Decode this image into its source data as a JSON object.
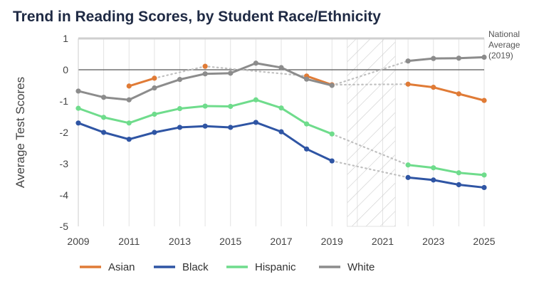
{
  "chart_data": {
    "type": "line",
    "title": "Trend in Reading Scores, by Student Race/Ethnicity",
    "ylabel": "Average Test Scores",
    "xlabel": "",
    "xlim": [
      2009,
      2025
    ],
    "ylim": [
      -5,
      1
    ],
    "x_ticks": [
      "2009",
      "2011",
      "2013",
      "2015",
      "2017",
      "2019",
      "2021",
      "2023",
      "2025"
    ],
    "y_ticks": [
      "1",
      "0",
      "-1",
      "-2",
      "-3",
      "-4",
      "-5"
    ],
    "grid": "vertical",
    "shaded_range": [
      2019.6,
      2021.5
    ],
    "reference_line": {
      "name": "National Average (2019)",
      "label_lines": [
        "National",
        "Average",
        "(2019)"
      ],
      "value": 1
    },
    "zero_line": 0,
    "legend_position": "bottom",
    "colors": {
      "Asian": "#e07b36",
      "Black": "#2f55a4",
      "Hispanic": "#6fdc8c",
      "White": "#8c8c8c",
      "dotted": "#c0c0c0",
      "reference": "#cfcfcf",
      "zero": "#555555",
      "grid": "#e3e3e3",
      "hatch": "#cccccc"
    },
    "series": [
      {
        "name": "Asian",
        "segments": [
          [
            [
              2011,
              -0.52
            ],
            [
              2012,
              -0.27
            ]
          ],
          [
            [
              2014,
              0.11
            ]
          ],
          [
            [
              2018,
              -0.2
            ],
            [
              2019,
              -0.48
            ]
          ],
          [
            [
              2022,
              -0.46
            ],
            [
              2023,
              -0.56
            ],
            [
              2024,
              -0.77
            ],
            [
              2025,
              -0.98
            ]
          ]
        ],
        "dotted": [
          [
            [
              2012,
              -0.27
            ],
            [
              2014,
              0.11
            ],
            [
              2018,
              -0.2
            ]
          ],
          [
            [
              2019,
              -0.48
            ],
            [
              2022,
              -0.46
            ]
          ]
        ]
      },
      {
        "name": "Black",
        "segments": [
          [
            [
              2009,
              -1.7
            ],
            [
              2010,
              -2.0
            ],
            [
              2011,
              -2.22
            ],
            [
              2012,
              -2.0
            ],
            [
              2013,
              -1.84
            ],
            [
              2014,
              -1.8
            ],
            [
              2015,
              -1.84
            ],
            [
              2016,
              -1.68
            ],
            [
              2017,
              -1.98
            ],
            [
              2018,
              -2.53
            ],
            [
              2019,
              -2.91
            ]
          ],
          [
            [
              2022,
              -3.44
            ],
            [
              2023,
              -3.52
            ],
            [
              2024,
              -3.67
            ],
            [
              2025,
              -3.76
            ]
          ]
        ],
        "dotted": [
          [
            [
              2019,
              -2.91
            ],
            [
              2022,
              -3.44
            ]
          ]
        ]
      },
      {
        "name": "Hispanic",
        "segments": [
          [
            [
              2009,
              -1.23
            ],
            [
              2010,
              -1.52
            ],
            [
              2011,
              -1.7
            ],
            [
              2012,
              -1.42
            ],
            [
              2013,
              -1.24
            ],
            [
              2014,
              -1.16
            ],
            [
              2015,
              -1.17
            ],
            [
              2016,
              -0.96
            ],
            [
              2017,
              -1.22
            ],
            [
              2018,
              -1.73
            ],
            [
              2019,
              -2.05
            ]
          ],
          [
            [
              2022,
              -3.04
            ],
            [
              2023,
              -3.13
            ],
            [
              2024,
              -3.29
            ],
            [
              2025,
              -3.36
            ]
          ]
        ],
        "dotted": [
          [
            [
              2019,
              -2.05
            ],
            [
              2022,
              -3.04
            ]
          ]
        ]
      },
      {
        "name": "White",
        "segments": [
          [
            [
              2009,
              -0.68
            ],
            [
              2010,
              -0.88
            ],
            [
              2011,
              -0.96
            ],
            [
              2012,
              -0.58
            ],
            [
              2013,
              -0.31
            ],
            [
              2014,
              -0.13
            ],
            [
              2015,
              -0.11
            ],
            [
              2016,
              0.21
            ],
            [
              2017,
              0.07
            ],
            [
              2018,
              -0.3
            ],
            [
              2019,
              -0.5
            ]
          ],
          [
            [
              2022,
              0.28
            ],
            [
              2023,
              0.36
            ],
            [
              2024,
              0.37
            ],
            [
              2025,
              0.4
            ]
          ]
        ],
        "dotted": [
          [
            [
              2019,
              -0.5
            ],
            [
              2022,
              0.28
            ]
          ]
        ]
      }
    ]
  }
}
